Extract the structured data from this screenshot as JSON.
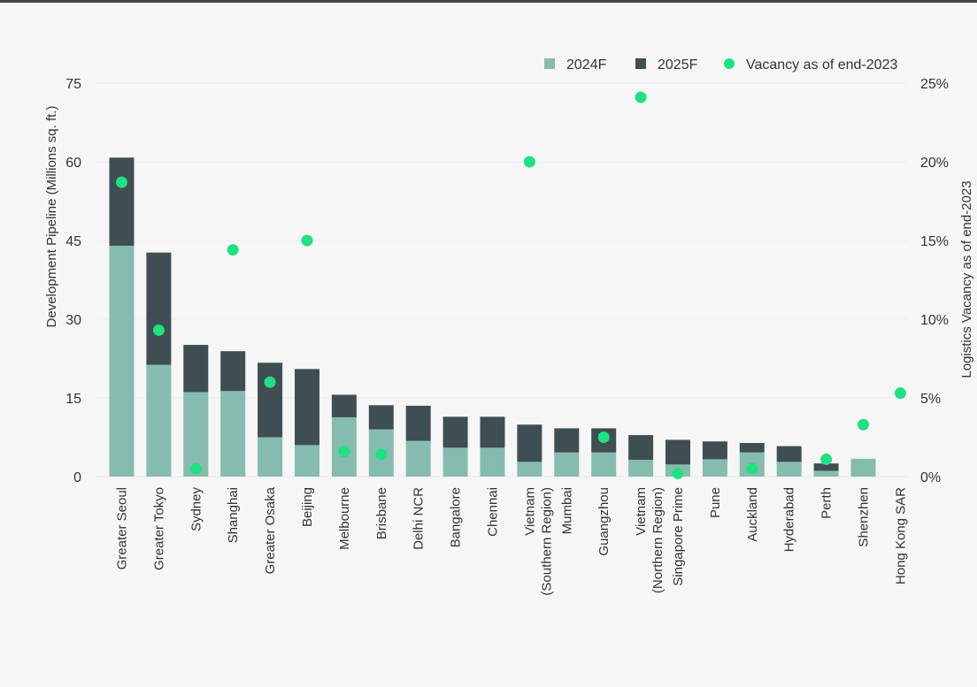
{
  "chart_data": {
    "type": "bar",
    "stacked": true,
    "categories": [
      [
        "Greater Seoul"
      ],
      [
        "Greater Tokyo"
      ],
      [
        "Sydney"
      ],
      [
        "Shanghai"
      ],
      [
        "Greater Osaka"
      ],
      [
        "Beijing"
      ],
      [
        "Melbourne"
      ],
      [
        "Brisbane"
      ],
      [
        "Delhi NCR"
      ],
      [
        "Bangalore"
      ],
      [
        "Chennai"
      ],
      [
        "Vietnam",
        "(Southern Region)"
      ],
      [
        "Mumbai"
      ],
      [
        "Guangzhou"
      ],
      [
        "Vietnam",
        "(Northern Region)"
      ],
      [
        "Singapore Prime"
      ],
      [
        "Pune"
      ],
      [
        "Auckland"
      ],
      [
        "Hyderabad"
      ],
      [
        "Perth"
      ],
      [
        "Shenzhen"
      ],
      [
        "Hong Kong SAR"
      ]
    ],
    "series": [
      {
        "name": "2024F",
        "axis": "left",
        "color": "#86bcad",
        "values": [
          44,
          21.3,
          16.1,
          16.3,
          7.5,
          6,
          11.3,
          9,
          6.8,
          5.5,
          5.5,
          2.8,
          4.6,
          4.6,
          3.2,
          2.3,
          3.3,
          4.6,
          2.8,
          1.1,
          3.4,
          0
        ]
      },
      {
        "name": "2025F",
        "axis": "left",
        "color": "#3f4e52",
        "values": [
          16.8,
          21.4,
          9,
          7.6,
          14.2,
          14.5,
          4.3,
          4.6,
          6.7,
          5.9,
          5.9,
          7.1,
          4.6,
          4.6,
          4.7,
          4.7,
          3.4,
          1.8,
          3,
          1.4,
          0,
          0
        ]
      },
      {
        "name": "Vacancy as of end-2023",
        "axis": "right",
        "type": "scatter",
        "color": "#1fe083",
        "values": [
          18.7,
          9.3,
          0.5,
          14.4,
          6,
          15,
          1.6,
          1.4,
          null,
          null,
          null,
          20,
          null,
          2.5,
          24.1,
          0.2,
          null,
          0.5,
          null,
          1.1,
          3.3,
          5.3
        ]
      }
    ],
    "ylabel": "Development Pipeline (Millions sq. ft.)",
    "y2label": "Logistics Vacancy as of end-2023",
    "ylim": [
      0,
      75
    ],
    "yticks": [
      "0",
      "15",
      "30",
      "45",
      "60",
      "75"
    ],
    "y2lim": [
      0,
      25
    ],
    "y2ticks": [
      "0%",
      "5%",
      "10%",
      "15%",
      "20%",
      "25%"
    ],
    "grid": true,
    "legend": "top-right"
  }
}
